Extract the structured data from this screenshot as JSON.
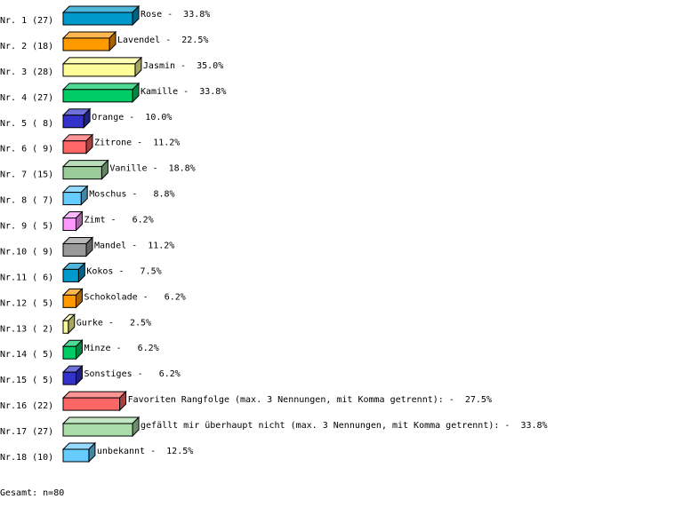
{
  "chart_data": {
    "type": "bar",
    "orientation": "horizontal",
    "style": "3d",
    "grid": false,
    "total_label": "Gesamt: n=80",
    "rows": [
      {
        "rank": "Nr. 1",
        "count_label": "(27)",
        "count": 27,
        "name": "Rose",
        "percent": "33.8%",
        "color": "#0099cc"
      },
      {
        "rank": "Nr. 2",
        "count_label": "(18)",
        "count": 18,
        "name": "Lavendel",
        "percent": "22.5%",
        "color": "#ff9900"
      },
      {
        "rank": "Nr. 3",
        "count_label": "(28)",
        "count": 28,
        "name": "Jasmin",
        "percent": "35.0%",
        "color": "#ffff99"
      },
      {
        "rank": "Nr. 4",
        "count_label": "(27)",
        "count": 27,
        "name": "Kamille",
        "percent": "33.8%",
        "color": "#00cc66"
      },
      {
        "rank": "Nr. 5",
        "count_label": "( 8)",
        "count": 8,
        "name": "Orange",
        "percent": "10.0%",
        "color": "#3333cc"
      },
      {
        "rank": "Nr. 6",
        "count_label": "( 9)",
        "count": 9,
        "name": "Zitrone",
        "percent": "11.2%",
        "color": "#ff6666"
      },
      {
        "rank": "Nr. 7",
        "count_label": "(15)",
        "count": 15,
        "name": "Vanille",
        "percent": "18.8%",
        "color": "#99cc99"
      },
      {
        "rank": "Nr. 8",
        "count_label": "( 7)",
        "count": 7,
        "name": "Moschus",
        "percent": "8.8%",
        "color": "#66ccff"
      },
      {
        "rank": "Nr. 9",
        "count_label": "( 5)",
        "count": 5,
        "name": "Zimt",
        "percent": "6.2%",
        "color": "#ff99ff"
      },
      {
        "rank": "Nr.10",
        "count_label": "( 9)",
        "count": 9,
        "name": "Mandel",
        "percent": "11.2%",
        "color": "#999999"
      },
      {
        "rank": "Nr.11",
        "count_label": "( 6)",
        "count": 6,
        "name": "Kokos",
        "percent": "7.5%",
        "color": "#0099cc"
      },
      {
        "rank": "Nr.12",
        "count_label": "( 5)",
        "count": 5,
        "name": "Schokolade",
        "percent": "6.2%",
        "color": "#ff9900"
      },
      {
        "rank": "Nr.13",
        "count_label": "( 2)",
        "count": 2,
        "name": "Gurke",
        "percent": "2.5%",
        "color": "#ffff99"
      },
      {
        "rank": "Nr.14",
        "count_label": "( 5)",
        "count": 5,
        "name": "Minze",
        "percent": "6.2%",
        "color": "#00cc66"
      },
      {
        "rank": "Nr.15",
        "count_label": "( 5)",
        "count": 5,
        "name": "Sonstiges",
        "percent": "6.2%",
        "color": "#3333cc"
      },
      {
        "rank": "Nr.16",
        "count_label": "(22)",
        "count": 22,
        "name": "Favoriten Rangfolge (max. 3 Nennungen, mit Komma getrennt):",
        "percent": "27.5%",
        "color": "#ff6666"
      },
      {
        "rank": "Nr.17",
        "count_label": "(27)",
        "count": 27,
        "name": "gefällt mir überhaupt nicht (max. 3 Nennungen, mit Komma getrennt):",
        "percent": "33.8%",
        "color": "#aaddaa"
      },
      {
        "rank": "Nr.18",
        "count_label": "(10)",
        "count": 10,
        "name": "unbekannt",
        "percent": "12.5%",
        "color": "#66ccff"
      }
    ]
  }
}
